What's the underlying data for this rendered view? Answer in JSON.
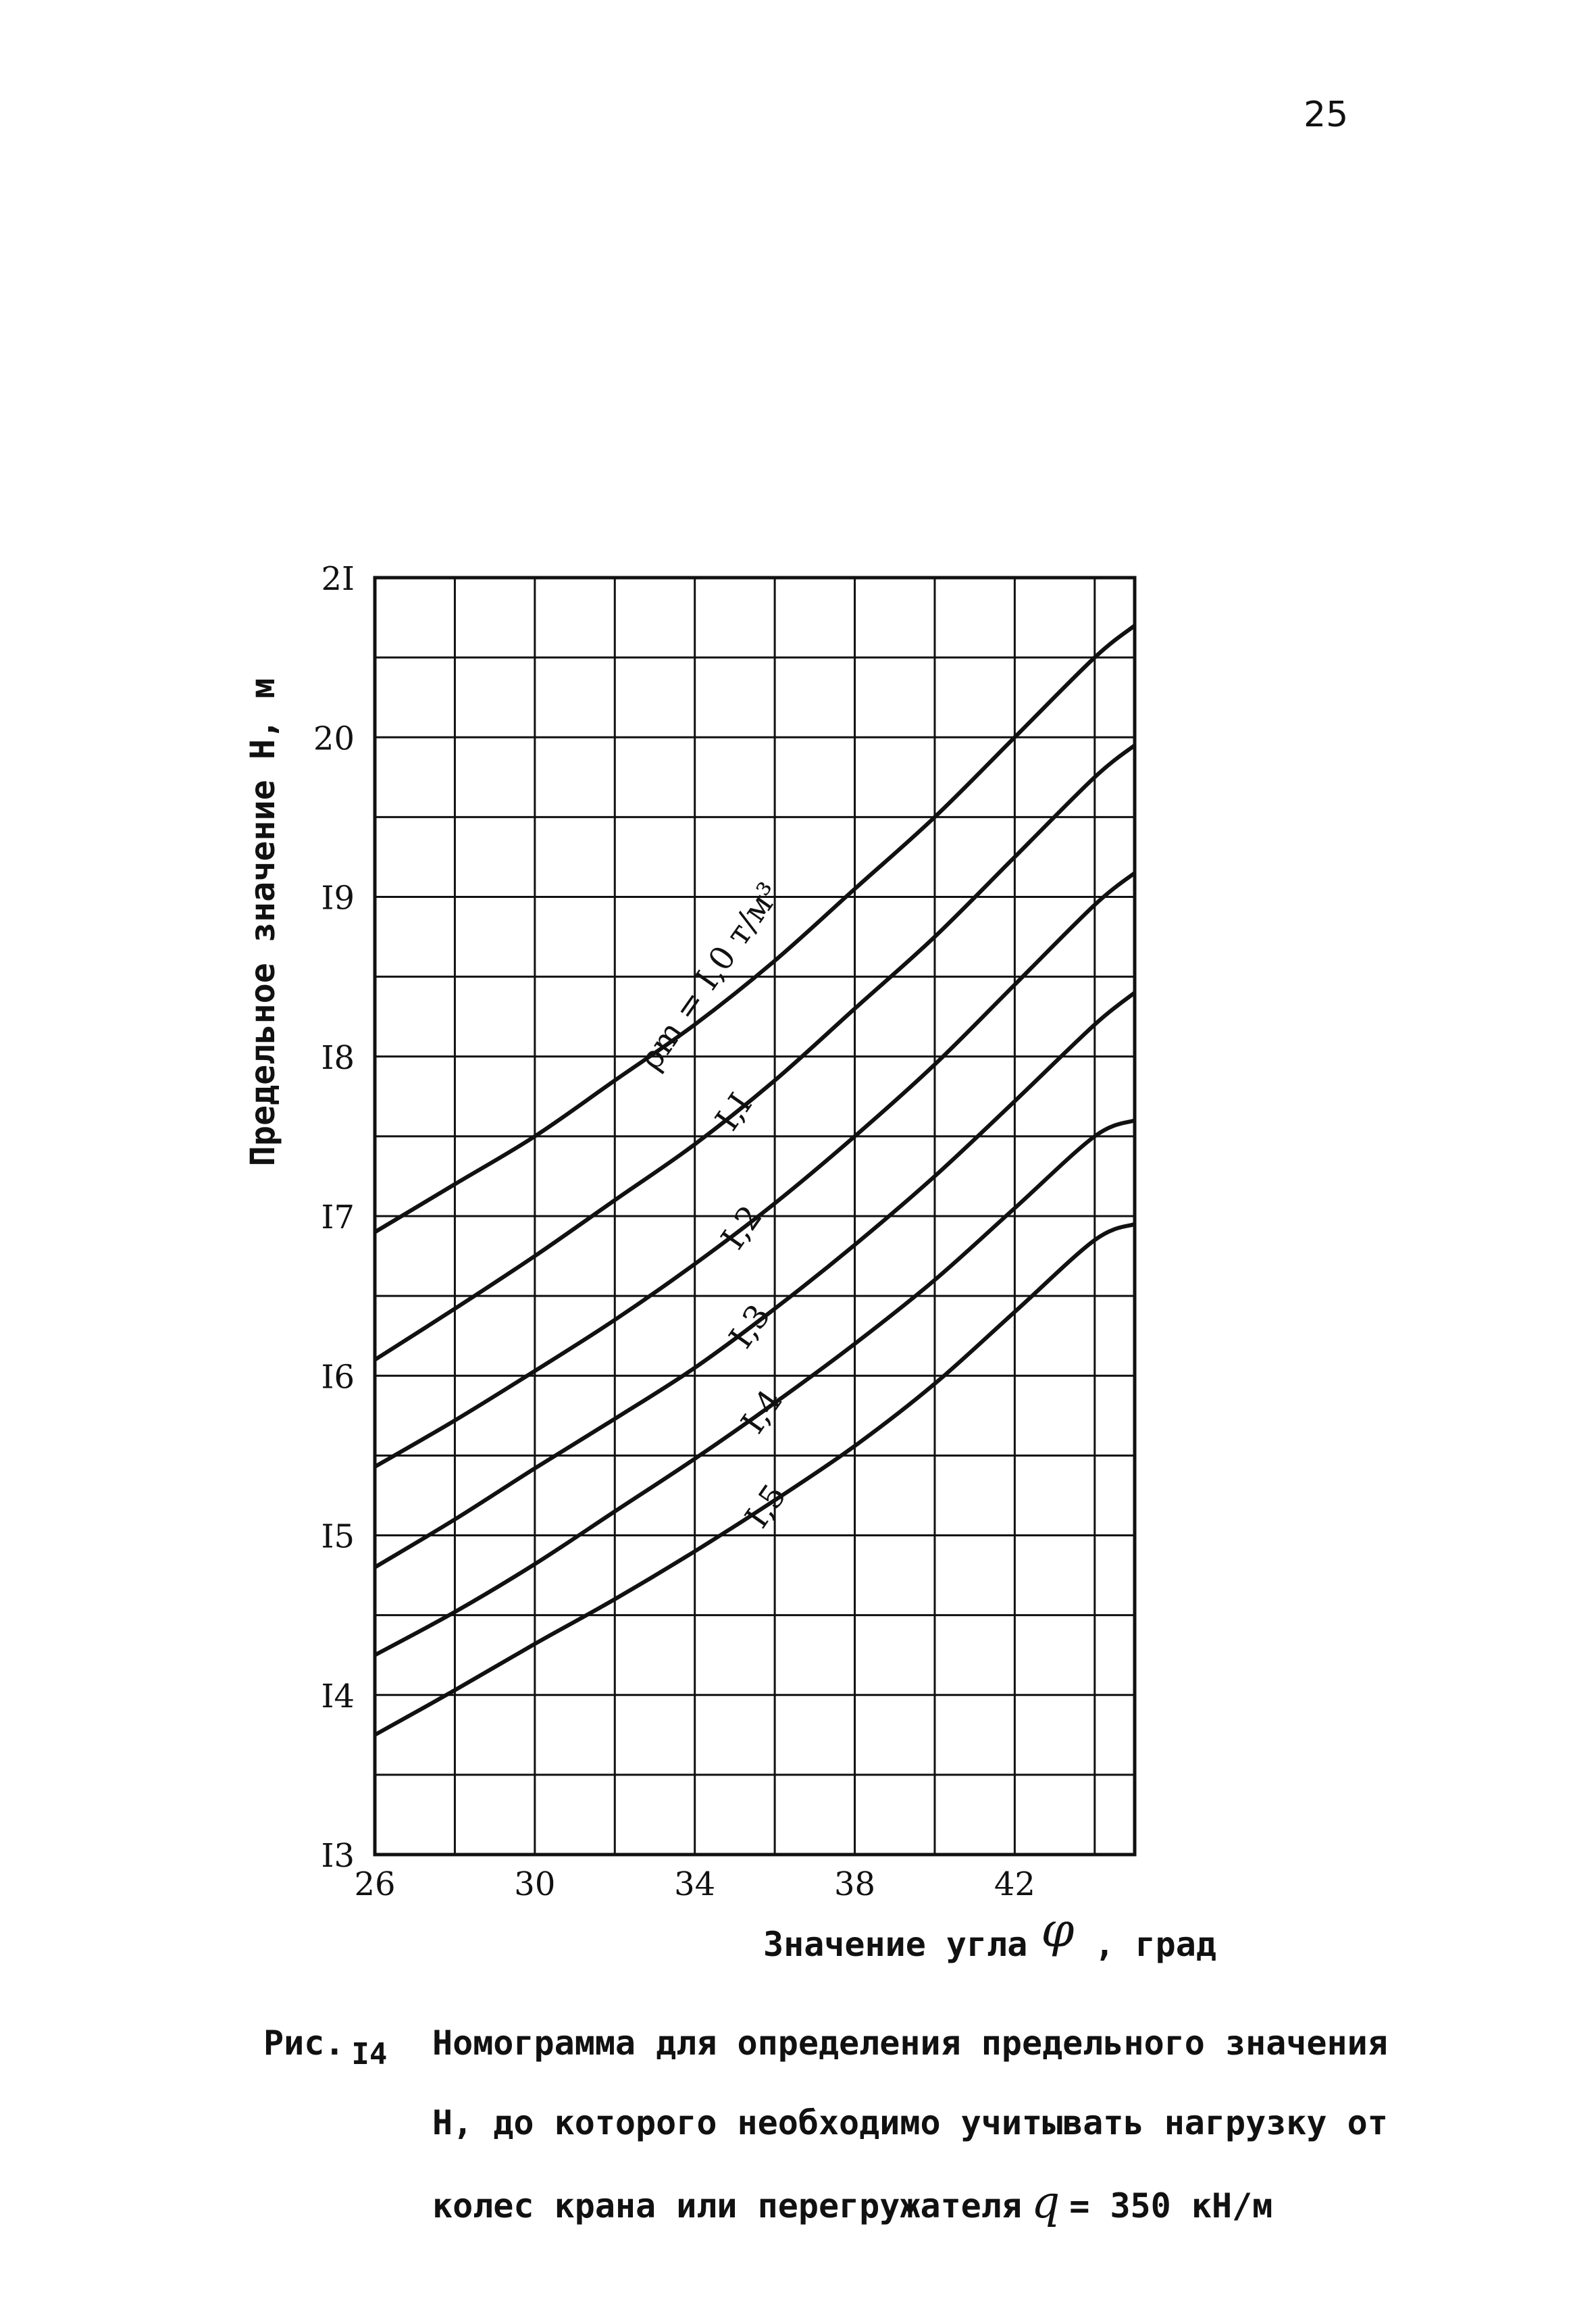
{
  "page": {
    "number": "25"
  },
  "chart_data": {
    "type": "line",
    "ylabel": "Предельное значение Н, м",
    "xlabel": "Значение угла",
    "xlabel_symbol": "φ",
    "xlabel_unit": ", град",
    "xlim": [
      26,
      45
    ],
    "ylim": [
      13,
      21
    ],
    "x_ticks": [
      26,
      30,
      34,
      38,
      42
    ],
    "x_tick_labels": [
      "26",
      "30",
      "34",
      "38",
      "42"
    ],
    "x_grid": [
      26,
      28,
      30,
      32,
      34,
      36,
      38,
      40,
      42,
      44
    ],
    "y_ticks": [
      13,
      14,
      15,
      16,
      17,
      18,
      19,
      20,
      21
    ],
    "y_tick_labels": [
      "I3",
      "I4",
      "I5",
      "I6",
      "I7",
      "I8",
      "I9",
      "20",
      "2I"
    ],
    "y_grid": [
      13,
      13.5,
      14,
      14.5,
      15,
      15.5,
      16,
      16.5,
      17,
      17.5,
      18,
      18.5,
      19,
      19.5,
      20,
      20.5,
      21
    ],
    "grid": true,
    "series": [
      {
        "name": "ρm = I,0 т/м³",
        "label": "ρm = I,0 т/м³",
        "x": [
          26,
          28,
          30,
          32,
          34,
          36,
          38,
          40,
          42,
          44,
          45
        ],
        "y": [
          16.9,
          17.2,
          17.5,
          17.85,
          18.2,
          18.6,
          19.05,
          19.5,
          20.0,
          20.5,
          20.7
        ]
      },
      {
        "name": "I,I",
        "label": "I,I",
        "x": [
          26,
          28,
          30,
          32,
          34,
          36,
          38,
          40,
          42,
          44,
          45
        ],
        "y": [
          16.1,
          16.42,
          16.75,
          17.1,
          17.45,
          17.85,
          18.3,
          18.75,
          19.25,
          19.75,
          19.95
        ]
      },
      {
        "name": "I,2",
        "label": "I,2",
        "x": [
          26,
          28,
          30,
          32,
          34,
          36,
          38,
          40,
          42,
          44,
          45
        ],
        "y": [
          15.43,
          15.72,
          16.03,
          16.35,
          16.7,
          17.08,
          17.5,
          17.95,
          18.45,
          18.95,
          19.15
        ]
      },
      {
        "name": "I,3",
        "label": "I,3",
        "x": [
          26,
          28,
          30,
          32,
          34,
          36,
          38,
          40,
          42,
          44,
          45
        ],
        "y": [
          14.8,
          15.1,
          15.42,
          15.73,
          16.05,
          16.42,
          16.82,
          17.25,
          17.72,
          18.2,
          18.4
        ]
      },
      {
        "name": "I,4",
        "label": "I,4",
        "x": [
          26,
          28,
          30,
          32,
          34,
          36,
          38,
          40,
          42,
          44,
          45
        ],
        "y": [
          14.25,
          14.52,
          14.82,
          15.15,
          15.48,
          15.83,
          16.2,
          16.6,
          17.05,
          17.5,
          17.6
        ]
      },
      {
        "name": "I,5",
        "label": "I,5",
        "x": [
          26,
          28,
          30,
          32,
          34,
          36,
          38,
          40,
          42,
          44,
          45
        ],
        "y": [
          13.75,
          14.03,
          14.32,
          14.6,
          14.9,
          15.22,
          15.56,
          15.95,
          16.4,
          16.85,
          16.95
        ]
      }
    ]
  },
  "caption": {
    "fig_prefix": "Рис.",
    "fig_number": "I4",
    "line1": "Номограмма для определения предельного значения",
    "line2": "Н, до которого необходимо учитывать нагрузку от",
    "line3_start": "колес крана или перегружателя",
    "line3_symbol": "q",
    "line3_end": "= 350 кН/м"
  }
}
